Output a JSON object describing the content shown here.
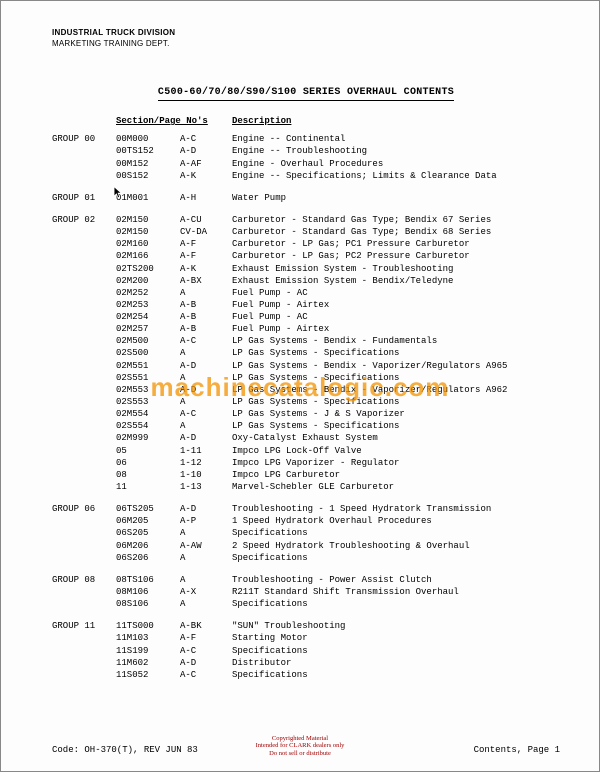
{
  "dept": {
    "line1": "INDUSTRIAL TRUCK DIVISION",
    "line2": "MARKETING TRAINING DEPT."
  },
  "title": "C500-60/70/80/S90/S100 SERIES OVERHAUL CONTENTS",
  "headers": {
    "section": "Section/Page No's",
    "description": "Description"
  },
  "groups": [
    {
      "label": "GROUP 00",
      "rows": [
        {
          "code": "00M000",
          "pages": "A-C",
          "desc": "Engine -- Continental"
        },
        {
          "code": "00TS152",
          "pages": "A-D",
          "desc": "Engine -- Troubleshooting"
        },
        {
          "code": "00M152",
          "pages": "A-AF",
          "desc": "Engine - Overhaul Procedures"
        },
        {
          "code": "00S152",
          "pages": "A-K",
          "desc": "Engine -- Specifications; Limits & Clearance Data"
        }
      ]
    },
    {
      "label": "GROUP 01",
      "rows": [
        {
          "code": "01M001",
          "pages": "A-H",
          "desc": "Water Pump"
        }
      ]
    },
    {
      "label": "GROUP 02",
      "rows": [
        {
          "code": "02M150",
          "pages": "A-CU",
          "desc": "Carburetor - Standard Gas Type; Bendix 67 Series"
        },
        {
          "code": "02M150",
          "pages": "CV-DA",
          "desc": "Carburetor - Standard Gas Type; Bendix 68 Series"
        },
        {
          "code": "02M160",
          "pages": "A-F",
          "desc": "Carburetor - LP Gas; PC1 Pressure Carburetor"
        },
        {
          "code": "02M166",
          "pages": "A-F",
          "desc": "Carburetor - LP Gas; PC2 Pressure Carburetor"
        },
        {
          "code": "02TS200",
          "pages": "A-K",
          "desc": "Exhaust Emission System - Troubleshooting"
        },
        {
          "code": "02M200",
          "pages": "A-BX",
          "desc": "Exhaust Emission System - Bendix/Teledyne"
        },
        {
          "code": "02M252",
          "pages": "A",
          "desc": "Fuel Pump - AC"
        },
        {
          "code": "02M253",
          "pages": "A-B",
          "desc": "Fuel Pump - Airtex"
        },
        {
          "code": "02M254",
          "pages": "A-B",
          "desc": "Fuel Pump - AC"
        },
        {
          "code": "02M257",
          "pages": "A-B",
          "desc": "Fuel Pump - Airtex"
        },
        {
          "code": "02M500",
          "pages": "A-C",
          "desc": "LP Gas Systems - Bendix - Fundamentals"
        },
        {
          "code": "02S500",
          "pages": "A",
          "desc": "LP Gas Systems - Specifications"
        },
        {
          "code": "02M551",
          "pages": "A-D",
          "desc": "LP Gas Systems - Bendix - Vaporizer/Regulators A965"
        },
        {
          "code": "02S551",
          "pages": "A",
          "desc": "LP Gas Systems - Specifications"
        },
        {
          "code": "02M553",
          "pages": "A-D",
          "desc": "LP Gas Systems - Bendix - Vaporizer/Regulators A962"
        },
        {
          "code": "02S553",
          "pages": "A",
          "desc": "LP Gas Systems - Specifications"
        },
        {
          "code": "02M554",
          "pages": "A-C",
          "desc": "LP Gas Systems - J & S Vaporizer"
        },
        {
          "code": "02S554",
          "pages": "A",
          "desc": "LP Gas Systems - Specifications"
        },
        {
          "code": "02M999",
          "pages": "A-D",
          "desc": "Oxy-Catalyst Exhaust System"
        },
        {
          "code": "05",
          "pages": "1-11",
          "desc": "Impco LPG Lock-Off Valve"
        },
        {
          "code": "06",
          "pages": "1-12",
          "desc": "Impco LPG Vaporizer - Regulator"
        },
        {
          "code": "08",
          "pages": "1-10",
          "desc": "Impco LPG Carburetor"
        },
        {
          "code": "11",
          "pages": "1-13",
          "desc": "Marvel-Schebler GLE Carburetor"
        }
      ]
    },
    {
      "label": "GROUP 06",
      "rows": [
        {
          "code": "06TS205",
          "pages": "A-D",
          "desc": "Troubleshooting - 1 Speed Hydratork Transmission"
        },
        {
          "code": "06M205",
          "pages": "A-P",
          "desc": "1 Speed Hydratork Overhaul Procedures"
        },
        {
          "code": "06S205",
          "pages": "A",
          "desc": "Specifications"
        },
        {
          "code": "06M206",
          "pages": "A-AW",
          "desc": "2 Speed Hydratork Troubleshooting & Overhaul"
        },
        {
          "code": "06S206",
          "pages": "A",
          "desc": "Specifications"
        }
      ]
    },
    {
      "label": "GROUP 08",
      "rows": [
        {
          "code": "08TS106",
          "pages": "A",
          "desc": "Troubleshooting - Power Assist Clutch"
        },
        {
          "code": "08M106",
          "pages": "A-X",
          "desc": "R211T Standard Shift Transmission Overhaul"
        },
        {
          "code": "08S106",
          "pages": "A",
          "desc": "Specifications"
        }
      ]
    },
    {
      "label": "GROUP 11",
      "rows": [
        {
          "code": "11TS000",
          "pages": "A-BK",
          "desc": "\"SUN\" Troubleshooting"
        },
        {
          "code": "11M103",
          "pages": "A-F",
          "desc": "Starting Motor"
        },
        {
          "code": "11S199",
          "pages": "A-C",
          "desc": "Specifications"
        },
        {
          "code": "11M602",
          "pages": "A-D",
          "desc": "Distributor"
        },
        {
          "code": "11S052",
          "pages": "A-C",
          "desc": "Specifications"
        }
      ]
    }
  ],
  "footer": {
    "code": "Code: OH-370(T), REV JUN 83",
    "right": "Contents, Page 1"
  },
  "copyright": {
    "l1": "Copyrighted Material",
    "l2": "Intended for CLARK dealers only",
    "l3": "Do not sell or distribute"
  },
  "watermark": "machinecatalogic.com"
}
